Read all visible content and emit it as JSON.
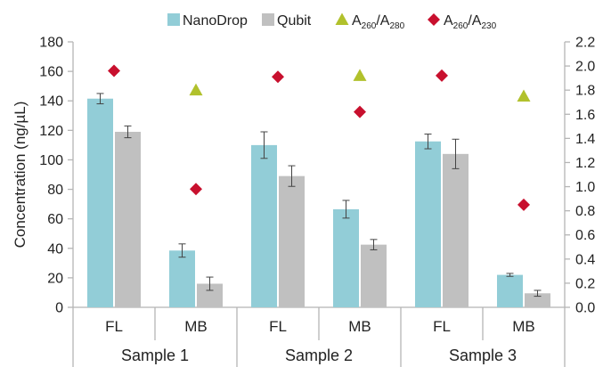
{
  "chart_data": {
    "type": "bar",
    "groups": [
      "Sample 1",
      "Sample 2",
      "Sample 3"
    ],
    "categories": [
      "FL",
      "MB",
      "FL",
      "MB",
      "FL",
      "MB"
    ],
    "ylabel": "Concentration (ng/µL)",
    "ylim": [
      0,
      180
    ],
    "yticks": [
      0,
      20,
      40,
      60,
      80,
      100,
      120,
      140,
      160,
      180
    ],
    "y2lim": [
      0.0,
      2.2
    ],
    "y2ticks": [
      "0.0",
      "0.2",
      "0.4",
      "0.6",
      "0.8",
      "1.0",
      "1.2",
      "1.4",
      "1.6",
      "1.8",
      "2.0",
      "2.2"
    ],
    "series": [
      {
        "name": "NanoDrop",
        "kind": "bar",
        "axis": "left",
        "color": "#92cdd7",
        "values": [
          141.5,
          38.5,
          110,
          66.5,
          112.5,
          22
        ],
        "errors": [
          3.5,
          4.5,
          9,
          6,
          5,
          1
        ]
      },
      {
        "name": "Qubit",
        "kind": "bar",
        "axis": "left",
        "color": "#c0c0c0",
        "values": [
          119,
          16,
          89,
          42.5,
          104,
          9.5
        ],
        "errors": [
          4,
          4.5,
          7,
          3.5,
          10,
          2
        ]
      },
      {
        "name": "A260/A280",
        "kind": "marker",
        "marker": "triangle",
        "axis": "right",
        "color": "#b1c12c",
        "values": [
          null,
          1.8,
          null,
          1.92,
          null,
          1.75
        ]
      },
      {
        "name": "A260/A230",
        "kind": "marker",
        "marker": "diamond",
        "axis": "right",
        "color": "#c8102e",
        "values": [
          1.96,
          0.98,
          1.91,
          1.62,
          1.92,
          0.85
        ]
      }
    ],
    "legend": {
      "position": "top",
      "items": [
        {
          "label": "NanoDrop"
        },
        {
          "label": "Qubit"
        },
        {
          "main": "A",
          "sub1": "260",
          "mid": "/A",
          "sub2": "280"
        },
        {
          "main": "A",
          "sub1": "260",
          "mid": "/A",
          "sub2": "230"
        }
      ]
    },
    "grid": false
  }
}
